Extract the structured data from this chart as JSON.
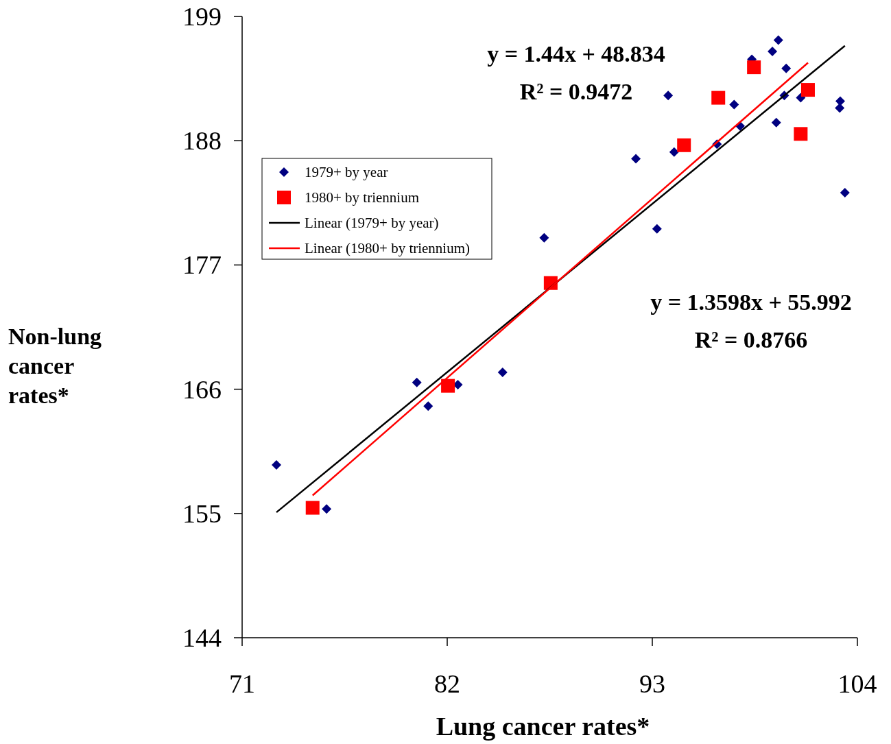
{
  "chart_data": {
    "type": "scatter",
    "xlabel": "Lung cancer rates*",
    "ylabel": "Non-lung cancer rates*",
    "xlim": [
      71,
      104
    ],
    "ylim": [
      144,
      199
    ],
    "xticks": [
      71,
      82,
      93,
      104
    ],
    "yticks": [
      144,
      155,
      166,
      177,
      188,
      199
    ],
    "legend": "top left",
    "series": [
      {
        "name": "1979+ by year",
        "marker": "diamond",
        "color": "#000080",
        "x": [
          72.84,
          75.53,
          80.37,
          80.98,
          82.57,
          84.97,
          87.2,
          92.12,
          93.25,
          93.85,
          94.17,
          96.47,
          97.39,
          97.71,
          98.34,
          99.44,
          99.65,
          99.76,
          100.08,
          100.18,
          100.96,
          103.08,
          103.05,
          103.33
        ],
        "values": [
          159.3,
          155.4,
          166.6,
          164.5,
          166.4,
          167.5,
          179.4,
          186.4,
          180.2,
          192.0,
          187.0,
          187.7,
          191.2,
          189.3,
          195.2,
          195.9,
          189.6,
          196.9,
          192.0,
          194.4,
          191.8,
          191.5,
          190.9,
          183.4
        ]
      },
      {
        "name": "1980+ by triennium",
        "marker": "square",
        "color": "#ff0000",
        "x": [
          74.78,
          82.04,
          87.55,
          94.7,
          96.54,
          98.45,
          100.96,
          101.35
        ],
        "values": [
          155.5,
          166.3,
          175.4,
          187.6,
          191.8,
          194.5,
          188.6,
          192.5
        ]
      },
      {
        "name": "Linear (1979+ by year)",
        "type": "line",
        "marker": "none",
        "color": "#000000",
        "x": [
          72.84,
          103.33
        ],
        "values": [
          155.1,
          196.4
        ]
      },
      {
        "name": "Linear (1980+ by triennium)",
        "type": "line",
        "marker": "none",
        "color": "#ff0000",
        "x": [
          74.78,
          101.35
        ],
        "values": [
          156.6,
          194.9
        ]
      }
    ],
    "annotations": [
      "y = 1.44x + 48.834",
      "R² = 0.9472",
      "y = 1.3598x + 55.992",
      "R² = 0.8766"
    ]
  }
}
